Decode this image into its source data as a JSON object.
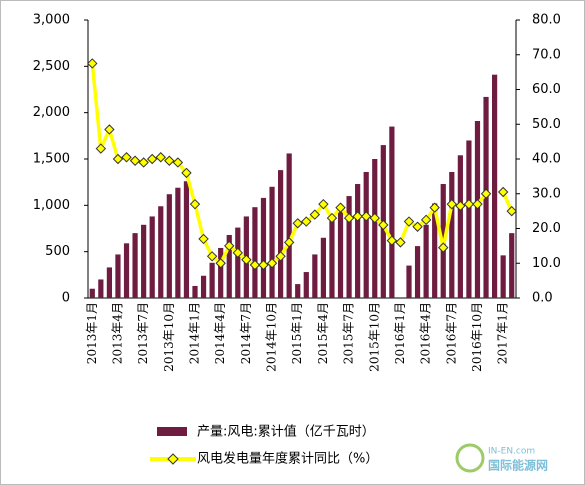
{
  "chart_data": {
    "type": "bar-line",
    "categories": [
      "2013年1月",
      null,
      null,
      "2013年4月",
      null,
      null,
      "2013年7月",
      null,
      null,
      "2013年10月",
      null,
      null,
      "2014年1月",
      null,
      null,
      "2014年4月",
      null,
      null,
      "2014年7月",
      null,
      null,
      "2014年10月",
      null,
      null,
      "2015年1月",
      null,
      null,
      "2015年4月",
      null,
      null,
      "2015年7月",
      null,
      null,
      "2015年10月",
      null,
      null,
      "2016年1月",
      null,
      null,
      "2016年4月",
      null,
      null,
      "2016年7月",
      null,
      null,
      "2016年10月",
      null,
      null,
      "2017年1月",
      null
    ],
    "series": [
      {
        "name": "产量:风电:累计值（亿千瓦时）",
        "type": "bar",
        "color": "#6e1c40",
        "values": [
          100,
          200,
          330,
          470,
          590,
          700,
          790,
          880,
          990,
          1120,
          1190,
          1260,
          130,
          240,
          380,
          540,
          680,
          760,
          880,
          980,
          1080,
          1200,
          1380,
          1560,
          150,
          280,
          470,
          650,
          830,
          960,
          1100,
          1230,
          1360,
          1500,
          1650,
          1850,
          null,
          350,
          560,
          790,
          1020,
          1230,
          1360,
          1540,
          1700,
          1910,
          2170,
          2410,
          460,
          700
        ]
      },
      {
        "name": "风电发电量年度累计同比（%）",
        "type": "line",
        "axis": "y2",
        "color": "#ffff00",
        "values": [
          67.5,
          43,
          48.5,
          40,
          40.5,
          39.5,
          39,
          40,
          40.5,
          39.5,
          39,
          36,
          27,
          17,
          12,
          10,
          15,
          13,
          11,
          9.5,
          9.5,
          10,
          12,
          16,
          21.5,
          22,
          24,
          27,
          23,
          26,
          23,
          23.5,
          23.5,
          23,
          21,
          16.5,
          16,
          22,
          20.5,
          22.5,
          26,
          14.5,
          27,
          26.5,
          27,
          27,
          30,
          null,
          30.5,
          25
        ]
      }
    ],
    "ylim": [
      0,
      3000
    ],
    "yticks": [
      0,
      500,
      {
        "value": 1000,
        "label": "1,000"
      },
      {
        "value": 1500,
        "label": "1,500"
      },
      {
        "value": 2000,
        "label": "2,000"
      },
      {
        "value": 2500,
        "label": "2,500"
      },
      {
        "value": 3000,
        "label": "3,000"
      }
    ],
    "y2lim": [
      0,
      80
    ],
    "y2ticks": [
      {
        "value": 0,
        "label": "0.0"
      },
      {
        "value": 10,
        "label": "10.0"
      },
      {
        "value": 20,
        "label": "20.0"
      },
      {
        "value": 30,
        "label": "30.0"
      },
      {
        "value": 40,
        "label": "40.0"
      },
      {
        "value": 50,
        "label": "50.0"
      },
      {
        "value": 60,
        "label": "60.0"
      },
      {
        "value": 70,
        "label": "70.0"
      },
      {
        "value": 80,
        "label": "80.0"
      }
    ],
    "watermark": "IN-EN.com",
    "watermark_name": "国际能源网"
  }
}
